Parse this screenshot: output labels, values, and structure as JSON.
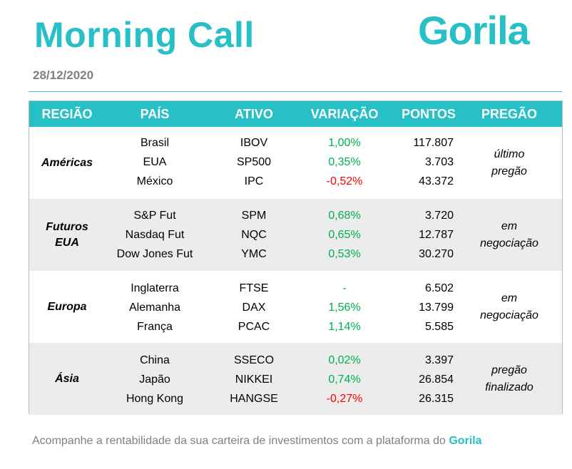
{
  "header": {
    "title": "Morning Call",
    "logo": "Gorila",
    "date": "28/12/2020"
  },
  "table": {
    "columns": [
      "REGIÃO",
      "PAÍS",
      "ATIVO",
      "VARIAÇÃO",
      "PONTOS",
      "PREGÃO"
    ],
    "groups": [
      {
        "region": [
          "Américas"
        ],
        "status": [
          "último",
          "pregão"
        ],
        "rows": [
          {
            "country": "Brasil",
            "asset": "IBOV",
            "variation": "1,00%",
            "points": "117.807"
          },
          {
            "country": "EUA",
            "asset": "SP500",
            "variation": "0,35%",
            "points": "3.703"
          },
          {
            "country": "México",
            "asset": "IPC",
            "variation": "-0,52%",
            "points": "43.372"
          }
        ]
      },
      {
        "region": [
          "Futuros",
          "EUA"
        ],
        "status": [
          "em",
          "negociação"
        ],
        "rows": [
          {
            "country": "S&P Fut",
            "asset": "SPM",
            "variation": "0,68%",
            "points": "3.720"
          },
          {
            "country": "Nasdaq Fut",
            "asset": "NQC",
            "variation": "0,65%",
            "points": "12.787"
          },
          {
            "country": "Dow Jones Fut",
            "asset": "YMC",
            "variation": "0,53%",
            "points": "30.270"
          }
        ]
      },
      {
        "region": [
          "Europa"
        ],
        "status": [
          "em",
          "negociação"
        ],
        "rows": [
          {
            "country": "Inglaterra",
            "asset": "FTSE",
            "variation": "-",
            "points": "6.502"
          },
          {
            "country": "Alemanha",
            "asset": "DAX",
            "variation": "1,56%",
            "points": "13.799"
          },
          {
            "country": "França",
            "asset": "PCAC",
            "variation": "1,14%",
            "points": "5.585"
          }
        ]
      },
      {
        "region": [
          "Ásia"
        ],
        "status": [
          "pregão",
          "finalizado"
        ],
        "rows": [
          {
            "country": "China",
            "asset": "SSECO",
            "variation": "0,02%",
            "points": "3.397"
          },
          {
            "country": "Japão",
            "asset": "NIKKEI",
            "variation": "0,74%",
            "points": "26.854"
          },
          {
            "country": "Hong Kong",
            "asset": "HANGSE",
            "variation": "-0,27%",
            "points": "26.315"
          }
        ]
      }
    ]
  },
  "footer": {
    "text": "Acompanhe a rentabilidade da sua carteira de investimentos com a plataforma do ",
    "brand": "Gorila"
  },
  "colors": {
    "accent": "#26c0c6",
    "positive": "#00b050",
    "negative": "#ff0000",
    "row_shade": "#ececec"
  }
}
